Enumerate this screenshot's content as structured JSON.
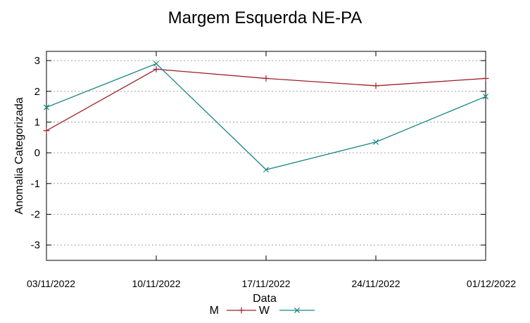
{
  "chart_data": {
    "type": "line",
    "title": "Margem Esquerda NE-PA",
    "xlabel": "Data",
    "ylabel": "Anomalia Categorizada",
    "x": [
      "03/11/2022",
      "10/11/2022",
      "17/11/2022",
      "24/11/2022",
      "01/12/2022"
    ],
    "ylim": [
      -3.5,
      3.3
    ],
    "yticks": [
      -3,
      -2,
      -1,
      0,
      1,
      2,
      3
    ],
    "grid": true,
    "legend_position": "bottom",
    "series": [
      {
        "name": "M",
        "marker": "+",
        "color": "#a0202a",
        "values": [
          0.72,
          2.72,
          2.42,
          2.18,
          2.42
        ]
      },
      {
        "name": "W",
        "marker": "x",
        "color": "#1a8686",
        "values": [
          1.48,
          2.9,
          -0.55,
          0.35,
          1.83
        ]
      }
    ]
  }
}
